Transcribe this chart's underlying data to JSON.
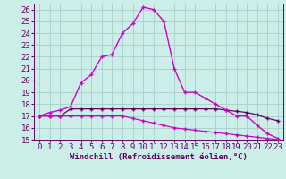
{
  "xlabel": "Windchill (Refroidissement éolien,°C)",
  "background_color": "#cceee8",
  "grid_color": "#aacccc",
  "line_color": "#cc00cc",
  "line_color2": "#660066",
  "xlim": [
    -0.5,
    23.5
  ],
  "ylim": [
    15,
    26.5
  ],
  "yticks": [
    15,
    16,
    17,
    18,
    19,
    20,
    21,
    22,
    23,
    24,
    25,
    26
  ],
  "xticks": [
    0,
    1,
    2,
    3,
    4,
    5,
    6,
    7,
    8,
    9,
    10,
    11,
    12,
    13,
    14,
    15,
    16,
    17,
    18,
    19,
    20,
    21,
    22,
    23
  ],
  "curve1_x": [
    0,
    1,
    2,
    3,
    4,
    5,
    6,
    7,
    8,
    9,
    10,
    11,
    12,
    13,
    14,
    15,
    16,
    17,
    18,
    19,
    20,
    21,
    22,
    23
  ],
  "curve1_y": [
    17.0,
    17.3,
    17.5,
    17.8,
    19.8,
    20.5,
    22.0,
    22.2,
    24.0,
    24.8,
    26.2,
    26.0,
    25.0,
    21.0,
    19.0,
    19.0,
    18.5,
    18.0,
    17.5,
    17.0,
    17.0,
    16.2,
    15.5,
    15.1
  ],
  "curve2_x": [
    0,
    1,
    2,
    3,
    4,
    5,
    6,
    7,
    8,
    9,
    10,
    11,
    12,
    13,
    14,
    15,
    16,
    17,
    18,
    19,
    20,
    21,
    22,
    23
  ],
  "curve2_y": [
    17.0,
    17.0,
    17.0,
    17.6,
    17.6,
    17.6,
    17.6,
    17.6,
    17.6,
    17.6,
    17.6,
    17.6,
    17.6,
    17.6,
    17.6,
    17.6,
    17.6,
    17.6,
    17.5,
    17.4,
    17.3,
    17.1,
    16.8,
    16.6
  ],
  "curve3_x": [
    0,
    1,
    2,
    3,
    4,
    5,
    6,
    7,
    8,
    9,
    10,
    11,
    12,
    13,
    14,
    15,
    16,
    17,
    18,
    19,
    20,
    21,
    22,
    23
  ],
  "curve3_y": [
    17.0,
    17.0,
    17.0,
    17.0,
    17.0,
    17.0,
    17.0,
    17.0,
    17.0,
    16.8,
    16.6,
    16.4,
    16.2,
    16.0,
    15.9,
    15.8,
    15.7,
    15.6,
    15.5,
    15.4,
    15.3,
    15.2,
    15.1,
    15.0
  ],
  "xlabel_fontsize": 6.5,
  "tick_fontsize": 6.5,
  "label_color": "#660066"
}
